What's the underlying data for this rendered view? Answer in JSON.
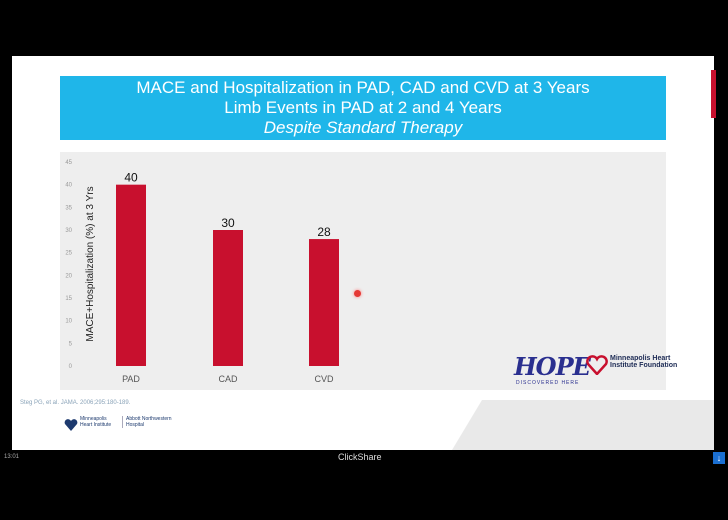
{
  "slide": {
    "title_line1": "MACE and Hospitalization in PAD, CAD and CVD at 3 Years",
    "title_line2": "Limb Events in PAD at 2 and 4 Years",
    "title_line3": "Despite Standard Therapy",
    "citation": "Steg PG, et al. JAMA. 2006;295:180-189.",
    "logo_left_text1": "Minneapolis Heart Institute",
    "logo_left_text2": "Abbott Northwestern Hospital",
    "hope_label": "HOPE",
    "hope_sub": "DISCOVERED HERE",
    "mhif_label": "Minneapolis Heart Institute Foundation"
  },
  "chart_data": {
    "type": "bar",
    "categories": [
      "PAD",
      "CAD",
      "CVD"
    ],
    "values": [
      40,
      30,
      28
    ],
    "data_labels": [
      "40",
      "30",
      "28"
    ],
    "ylabel": "MACE+Hospitalization (%) at 3 Yrs",
    "ylim": [
      0,
      45
    ],
    "yticks": [
      0,
      5,
      10,
      15,
      20,
      25,
      30,
      35,
      40,
      45
    ],
    "bar_color": "#c8102e",
    "background": "#eeeeee",
    "grid": false
  },
  "footer": {
    "time": "13:01",
    "app": "ClickShare",
    "download_icon": "download-icon"
  },
  "colors": {
    "title_bg": "#1fb6e9",
    "accent": "#c8102e",
    "hope": "#2a2f8f"
  }
}
